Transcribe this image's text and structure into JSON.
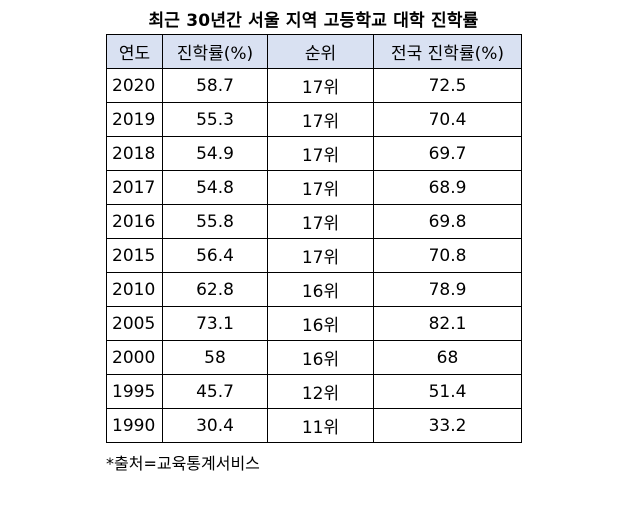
{
  "title": "최근 30년간 서울 지역 고등학교 대학 진학률",
  "table": {
    "headers": [
      "연도",
      "진학률(%)",
      "순위",
      "전국 진학률(%)"
    ],
    "rows": [
      [
        "2020",
        "58.7",
        "17위",
        "72.5"
      ],
      [
        "2019",
        "55.3",
        "17위",
        "70.4"
      ],
      [
        "2018",
        "54.9",
        "17위",
        "69.7"
      ],
      [
        "2017",
        "54.8",
        "17위",
        "68.9"
      ],
      [
        "2016",
        "55.8",
        "17위",
        "69.8"
      ],
      [
        "2015",
        "56.4",
        "17위",
        "70.8"
      ],
      [
        "2010",
        "62.8",
        "16위",
        "78.9"
      ],
      [
        "2005",
        "73.1",
        "16위",
        "82.1"
      ],
      [
        "2000",
        "58",
        "16위",
        "68"
      ],
      [
        "1995",
        "45.7",
        "12위",
        "51.4"
      ],
      [
        "1990",
        "30.4",
        "11위",
        "33.2"
      ]
    ]
  },
  "source": "*출처=교육통계서비스",
  "colors": {
    "header_bg": "#d9e1f2",
    "border": "#000000"
  }
}
